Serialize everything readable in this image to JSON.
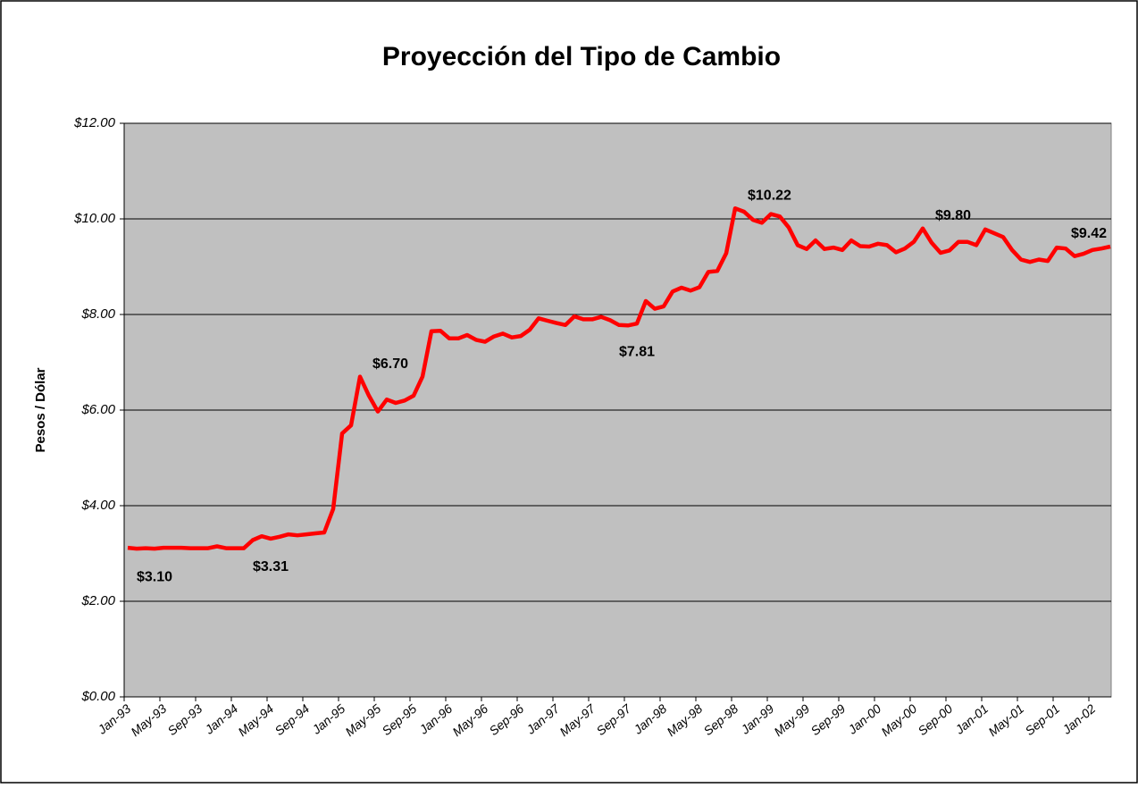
{
  "chart_data": {
    "type": "line",
    "title": "Proyección del Tipo de Cambio",
    "y_label": "Pesos / Dólar",
    "categories": [
      "Jan-93",
      null,
      null,
      null,
      "May-93",
      null,
      null,
      null,
      "Sep-93",
      null,
      null,
      null,
      "Jan-94",
      null,
      null,
      null,
      "May-94",
      null,
      null,
      null,
      "Sep-94",
      null,
      null,
      null,
      "Jan-95",
      null,
      null,
      null,
      "May-95",
      null,
      null,
      null,
      "Sep-95",
      null,
      null,
      null,
      "Jan-96",
      null,
      null,
      null,
      "May-96",
      null,
      null,
      null,
      "Sep-96",
      null,
      null,
      null,
      "Jan-97",
      null,
      null,
      null,
      "May-97",
      null,
      null,
      null,
      "Sep-97",
      null,
      null,
      null,
      "Jan-98",
      null,
      null,
      null,
      "May-98",
      null,
      null,
      null,
      "Sep-98",
      null,
      null,
      null,
      "Jan-99",
      null,
      null,
      null,
      "May-99",
      null,
      null,
      null,
      "Sep-99",
      null,
      null,
      null,
      "Jan-00",
      null,
      null,
      null,
      "May-00",
      null,
      null,
      null,
      "Sep-00",
      null,
      null,
      null,
      "Jan-01",
      null,
      null,
      null,
      "May-01",
      null,
      null,
      null,
      "Sep-01",
      null,
      null,
      null,
      "Jan-02",
      null,
      null
    ],
    "series": [
      {
        "color": "#ff0000",
        "values": [
          3.12,
          3.1,
          3.11,
          3.1,
          3.12,
          3.12,
          3.12,
          3.11,
          3.11,
          3.11,
          3.15,
          3.11,
          3.11,
          3.11,
          3.28,
          3.36,
          3.31,
          3.35,
          3.4,
          3.38,
          3.4,
          3.42,
          3.44,
          3.93,
          5.51,
          5.68,
          6.7,
          6.3,
          5.97,
          6.22,
          6.15,
          6.2,
          6.3,
          6.7,
          7.65,
          7.66,
          7.5,
          7.5,
          7.57,
          7.47,
          7.43,
          7.54,
          7.6,
          7.52,
          7.55,
          7.68,
          7.92,
          7.87,
          7.82,
          7.78,
          7.96,
          7.9,
          7.9,
          7.95,
          7.88,
          7.78,
          7.77,
          7.81,
          8.28,
          8.12,
          8.17,
          8.48,
          8.56,
          8.5,
          8.57,
          8.89,
          8.91,
          9.28,
          10.22,
          10.15,
          9.98,
          9.92,
          10.1,
          10.05,
          9.82,
          9.45,
          9.37,
          9.55,
          9.37,
          9.4,
          9.35,
          9.55,
          9.43,
          9.42,
          9.48,
          9.45,
          9.3,
          9.38,
          9.52,
          9.8,
          9.5,
          9.29,
          9.34,
          9.52,
          9.52,
          9.45,
          9.78,
          9.7,
          9.62,
          9.35,
          9.15,
          9.1,
          9.15,
          9.12,
          9.4,
          9.38,
          9.22,
          9.27,
          9.35,
          9.38,
          9.42
        ],
        "value_labels": [
          null,
          null,
          null,
          "$3.10",
          null,
          null,
          null,
          null,
          null,
          null,
          null,
          null,
          null,
          null,
          null,
          null,
          "$3.31",
          null,
          null,
          null,
          null,
          null,
          null,
          null,
          null,
          null,
          "$6.70",
          null,
          null,
          null,
          null,
          null,
          null,
          null,
          null,
          null,
          null,
          null,
          null,
          null,
          null,
          null,
          null,
          null,
          null,
          null,
          null,
          null,
          null,
          null,
          null,
          null,
          null,
          null,
          null,
          null,
          null,
          "$7.81",
          null,
          null,
          null,
          null,
          null,
          null,
          null,
          null,
          null,
          null,
          "$10.22",
          null,
          null,
          null,
          null,
          null,
          null,
          null,
          null,
          null,
          null,
          null,
          null,
          null,
          null,
          null,
          null,
          null,
          null,
          null,
          null,
          "$9.80",
          null,
          null,
          null,
          null,
          null,
          null,
          null,
          null,
          null,
          null,
          null,
          null,
          null,
          null,
          null,
          null,
          null,
          null,
          null,
          null,
          "$9.42"
        ]
      }
    ],
    "ylim": [
      0,
      12
    ],
    "yticks": [
      {
        "value": 0,
        "label": "$0.00"
      },
      {
        "value": 2,
        "label": "$2.00"
      },
      {
        "value": 4,
        "label": "$4.00"
      },
      {
        "value": 6,
        "label": "$6.00"
      },
      {
        "value": 8,
        "label": "$8.00"
      },
      {
        "value": 10,
        "label": "$10.00"
      },
      {
        "value": 12,
        "label": "$12.00"
      }
    ],
    "grid": true,
    "background": "#c0c0c0"
  }
}
